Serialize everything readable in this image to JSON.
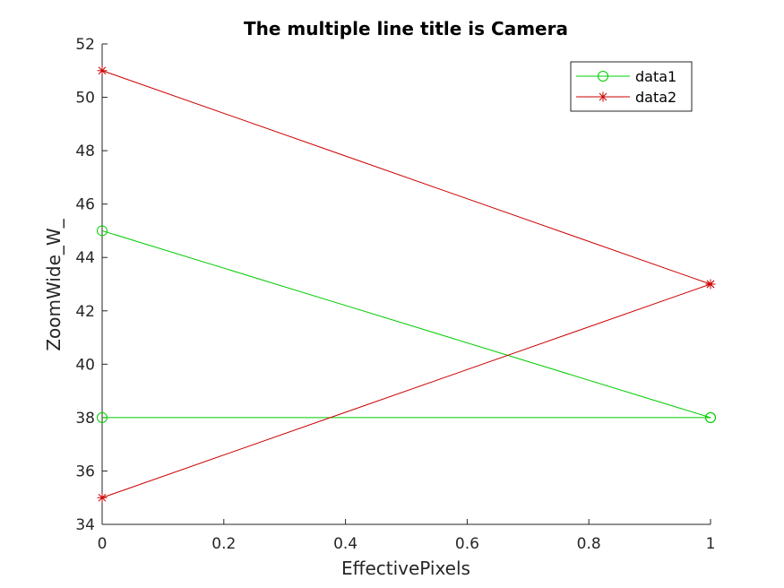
{
  "chart_data": {
    "type": "line",
    "title": "The multiple line title is Camera",
    "xlabel": "EffectivePixels",
    "ylabel": "ZoomWide_W_",
    "xlim": [
      0,
      1
    ],
    "ylim": [
      34,
      52
    ],
    "xticks": [
      0,
      0.2,
      0.4,
      0.6,
      0.8,
      1
    ],
    "xtick_labels": [
      "0",
      "0.2",
      "0.4",
      "0.6",
      "0.8",
      "1"
    ],
    "yticks": [
      34,
      36,
      38,
      40,
      42,
      44,
      46,
      48,
      50,
      52
    ],
    "ytick_labels": [
      "34",
      "36",
      "38",
      "40",
      "42",
      "44",
      "46",
      "48",
      "50",
      "52"
    ],
    "grid": false,
    "legend_position": "top-right",
    "series": [
      {
        "name": "data1",
        "color": "#00cc00",
        "marker": "circle",
        "points": [
          [
            0,
            38
          ],
          [
            1,
            38
          ],
          [
            0,
            45
          ],
          [
            1,
            38
          ]
        ]
      },
      {
        "name": "data2",
        "color": "#cc0000",
        "marker": "star",
        "points": [
          [
            0,
            35
          ],
          [
            1,
            43
          ],
          [
            0,
            51
          ],
          [
            1,
            43
          ]
        ]
      }
    ]
  }
}
